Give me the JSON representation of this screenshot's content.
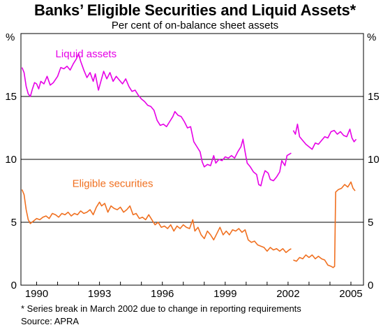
{
  "chart_data": {
    "type": "line",
    "title": "Banks’ Eligible Securities and Liquid Assets*",
    "subtitle": "Per cent of on-balance sheet assets",
    "ylabel_left": "%",
    "ylabel_right": "%",
    "ylim": [
      0,
      20
    ],
    "xlim": [
      1989.25,
      2005.6
    ],
    "yticks": [
      0,
      5,
      10,
      15
    ],
    "xticks": [
      1990,
      1993,
      1996,
      1999,
      2002,
      2005
    ],
    "grid": true,
    "footnote": "* Series break in March 2002 due to change in reporting requirements",
    "source": "Source: APRA",
    "series": [
      {
        "name": "Liquid assets",
        "color": "#e600e6",
        "label_position": {
          "x": 1990.9,
          "y": 18.1
        },
        "segments": [
          [
            [
              1989.3,
              17.3
            ],
            [
              1989.4,
              16.9
            ],
            [
              1989.5,
              15.8
            ],
            [
              1989.6,
              15.2
            ],
            [
              1989.7,
              15.0
            ],
            [
              1989.8,
              15.6
            ],
            [
              1989.9,
              16.1
            ],
            [
              1990.0,
              16.0
            ],
            [
              1990.1,
              15.6
            ],
            [
              1990.2,
              16.2
            ],
            [
              1990.35,
              16.0
            ],
            [
              1990.5,
              16.6
            ],
            [
              1990.65,
              15.9
            ],
            [
              1990.8,
              16.1
            ],
            [
              1991.0,
              16.6
            ],
            [
              1991.15,
              17.3
            ],
            [
              1991.3,
              17.2
            ],
            [
              1991.45,
              17.4
            ],
            [
              1991.6,
              17.1
            ],
            [
              1991.75,
              17.6
            ],
            [
              1991.9,
              18.0
            ],
            [
              1992.0,
              18.4
            ],
            [
              1992.1,
              17.8
            ],
            [
              1992.25,
              17.1
            ],
            [
              1992.4,
              16.5
            ],
            [
              1992.55,
              16.9
            ],
            [
              1992.7,
              16.2
            ],
            [
              1992.8,
              16.8
            ],
            [
              1992.95,
              15.5
            ],
            [
              1993.05,
              16.1
            ],
            [
              1993.2,
              17.0
            ],
            [
              1993.35,
              16.4
            ],
            [
              1993.5,
              16.9
            ],
            [
              1993.65,
              16.2
            ],
            [
              1993.8,
              16.6
            ],
            [
              1993.95,
              16.3
            ],
            [
              1994.1,
              16.0
            ],
            [
              1994.25,
              16.4
            ],
            [
              1994.4,
              15.8
            ],
            [
              1994.55,
              15.4
            ],
            [
              1994.7,
              15.5
            ],
            [
              1994.85,
              15.1
            ],
            [
              1995.0,
              14.8
            ],
            [
              1995.15,
              14.6
            ],
            [
              1995.3,
              14.3
            ],
            [
              1995.45,
              14.2
            ],
            [
              1995.6,
              13.9
            ],
            [
              1995.75,
              13.1
            ],
            [
              1995.9,
              12.7
            ],
            [
              1996.05,
              12.8
            ],
            [
              1996.2,
              12.6
            ],
            [
              1996.35,
              13.0
            ],
            [
              1996.5,
              13.4
            ],
            [
              1996.6,
              13.8
            ],
            [
              1996.75,
              13.5
            ],
            [
              1996.9,
              13.4
            ],
            [
              1997.05,
              13.0
            ],
            [
              1997.2,
              12.5
            ],
            [
              1997.35,
              12.6
            ],
            [
              1997.5,
              11.4
            ],
            [
              1997.65,
              11.0
            ],
            [
              1997.8,
              10.6
            ],
            [
              1997.9,
              9.8
            ],
            [
              1998.0,
              9.4
            ],
            [
              1998.15,
              9.6
            ],
            [
              1998.3,
              9.5
            ],
            [
              1998.45,
              10.3
            ],
            [
              1998.55,
              9.7
            ],
            [
              1998.7,
              10.0
            ],
            [
              1998.85,
              9.9
            ],
            [
              1999.0,
              10.2
            ],
            [
              1999.15,
              10.1
            ],
            [
              1999.3,
              10.3
            ],
            [
              1999.45,
              10.1
            ],
            [
              1999.6,
              10.6
            ],
            [
              1999.75,
              11.0
            ],
            [
              1999.85,
              11.6
            ],
            [
              1999.95,
              10.6
            ],
            [
              2000.05,
              9.7
            ],
            [
              2000.2,
              9.4
            ],
            [
              2000.35,
              9.0
            ],
            [
              2000.5,
              8.8
            ],
            [
              2000.6,
              8.0
            ],
            [
              2000.7,
              7.9
            ],
            [
              2000.8,
              8.6
            ],
            [
              2000.9,
              9.1
            ],
            [
              2001.05,
              8.9
            ],
            [
              2001.15,
              8.4
            ],
            [
              2001.3,
              8.3
            ],
            [
              2001.45,
              8.6
            ],
            [
              2001.6,
              9.0
            ],
            [
              2001.7,
              9.9
            ],
            [
              2001.85,
              9.5
            ],
            [
              2001.95,
              10.3
            ],
            [
              2002.05,
              10.4
            ],
            [
              2002.15,
              10.5
            ]
          ],
          [
            [
              2002.25,
              12.3
            ],
            [
              2002.35,
              12.0
            ],
            [
              2002.45,
              12.8
            ],
            [
              2002.55,
              11.8
            ],
            [
              2002.7,
              11.5
            ],
            [
              2002.85,
              11.2
            ],
            [
              2003.0,
              11.0
            ],
            [
              2003.15,
              10.8
            ],
            [
              2003.3,
              11.3
            ],
            [
              2003.45,
              11.2
            ],
            [
              2003.6,
              11.5
            ],
            [
              2003.75,
              11.8
            ],
            [
              2003.9,
              11.7
            ],
            [
              2004.05,
              12.2
            ],
            [
              2004.2,
              12.3
            ],
            [
              2004.35,
              12.0
            ],
            [
              2004.5,
              12.2
            ],
            [
              2004.65,
              11.9
            ],
            [
              2004.8,
              11.8
            ],
            [
              2004.95,
              12.4
            ],
            [
              2005.05,
              11.7
            ],
            [
              2005.15,
              11.4
            ],
            [
              2005.25,
              11.6
            ]
          ]
        ]
      },
      {
        "name": "Eligible securities",
        "color": "#f07020",
        "label_position": {
          "x": 1991.7,
          "y": 7.8
        },
        "segments": [
          [
            [
              1989.3,
              7.6
            ],
            [
              1989.4,
              7.2
            ],
            [
              1989.5,
              6.0
            ],
            [
              1989.6,
              5.2
            ],
            [
              1989.7,
              4.9
            ],
            [
              1989.85,
              5.1
            ],
            [
              1990.0,
              5.3
            ],
            [
              1990.15,
              5.2
            ],
            [
              1990.3,
              5.4
            ],
            [
              1990.45,
              5.5
            ],
            [
              1990.6,
              5.3
            ],
            [
              1990.75,
              5.7
            ],
            [
              1990.9,
              5.6
            ],
            [
              1991.05,
              5.4
            ],
            [
              1991.2,
              5.7
            ],
            [
              1991.35,
              5.6
            ],
            [
              1991.5,
              5.8
            ],
            [
              1991.65,
              5.5
            ],
            [
              1991.8,
              5.7
            ],
            [
              1991.95,
              5.6
            ],
            [
              1992.1,
              5.9
            ],
            [
              1992.25,
              5.7
            ],
            [
              1992.4,
              5.8
            ],
            [
              1992.55,
              6.0
            ],
            [
              1992.7,
              5.6
            ],
            [
              1992.85,
              6.2
            ],
            [
              1993.0,
              6.6
            ],
            [
              1993.1,
              6.3
            ],
            [
              1993.25,
              6.5
            ],
            [
              1993.4,
              5.8
            ],
            [
              1993.55,
              6.3
            ],
            [
              1993.7,
              6.1
            ],
            [
              1993.85,
              6.0
            ],
            [
              1994.0,
              6.2
            ],
            [
              1994.15,
              5.8
            ],
            [
              1994.3,
              6.0
            ],
            [
              1994.45,
              6.3
            ],
            [
              1994.6,
              5.6
            ],
            [
              1994.75,
              5.7
            ],
            [
              1994.9,
              5.3
            ],
            [
              1995.05,
              5.4
            ],
            [
              1995.2,
              5.2
            ],
            [
              1995.35,
              5.6
            ],
            [
              1995.5,
              5.2
            ],
            [
              1995.65,
              4.8
            ],
            [
              1995.8,
              5.0
            ],
            [
              1995.95,
              4.6
            ],
            [
              1996.1,
              4.7
            ],
            [
              1996.25,
              4.5
            ],
            [
              1996.4,
              4.8
            ],
            [
              1996.55,
              4.3
            ],
            [
              1996.7,
              4.7
            ],
            [
              1996.85,
              4.5
            ],
            [
              1997.0,
              4.8
            ],
            [
              1997.15,
              4.6
            ],
            [
              1997.3,
              4.5
            ],
            [
              1997.45,
              5.2
            ],
            [
              1997.55,
              4.3
            ],
            [
              1997.7,
              4.6
            ],
            [
              1997.85,
              4.0
            ],
            [
              1998.0,
              3.7
            ],
            [
              1998.15,
              4.3
            ],
            [
              1998.3,
              4.0
            ],
            [
              1998.45,
              3.6
            ],
            [
              1998.6,
              4.1
            ],
            [
              1998.75,
              4.6
            ],
            [
              1998.9,
              4.0
            ],
            [
              1999.05,
              4.3
            ],
            [
              1999.2,
              4.0
            ],
            [
              1999.35,
              4.4
            ],
            [
              1999.5,
              4.3
            ],
            [
              1999.65,
              4.5
            ],
            [
              1999.8,
              4.2
            ],
            [
              1999.95,
              4.4
            ],
            [
              2000.1,
              3.6
            ],
            [
              2000.25,
              3.4
            ],
            [
              2000.4,
              3.5
            ],
            [
              2000.55,
              3.2
            ],
            [
              2000.7,
              3.1
            ],
            [
              2000.85,
              3.0
            ],
            [
              2001.0,
              2.7
            ],
            [
              2001.15,
              3.0
            ],
            [
              2001.3,
              2.8
            ],
            [
              2001.45,
              2.9
            ],
            [
              2001.6,
              2.7
            ],
            [
              2001.75,
              2.9
            ],
            [
              2001.9,
              2.6
            ],
            [
              2002.05,
              2.8
            ],
            [
              2002.15,
              2.9
            ]
          ],
          [
            [
              2002.25,
              2.0
            ],
            [
              2002.4,
              1.9
            ],
            [
              2002.55,
              2.2
            ],
            [
              2002.7,
              2.1
            ],
            [
              2002.85,
              2.4
            ],
            [
              2003.0,
              2.2
            ],
            [
              2003.15,
              2.4
            ],
            [
              2003.3,
              2.1
            ],
            [
              2003.45,
              2.3
            ],
            [
              2003.6,
              2.1
            ],
            [
              2003.75,
              2.0
            ],
            [
              2003.9,
              1.6
            ],
            [
              2004.05,
              1.5
            ],
            [
              2004.15,
              1.4
            ],
            [
              2004.22,
              1.5
            ],
            [
              2004.27,
              7.4
            ],
            [
              2004.4,
              7.6
            ],
            [
              2004.55,
              7.7
            ],
            [
              2004.7,
              8.0
            ],
            [
              2004.85,
              7.8
            ],
            [
              2005.0,
              8.2
            ],
            [
              2005.1,
              7.7
            ],
            [
              2005.2,
              7.5
            ]
          ]
        ]
      }
    ]
  }
}
